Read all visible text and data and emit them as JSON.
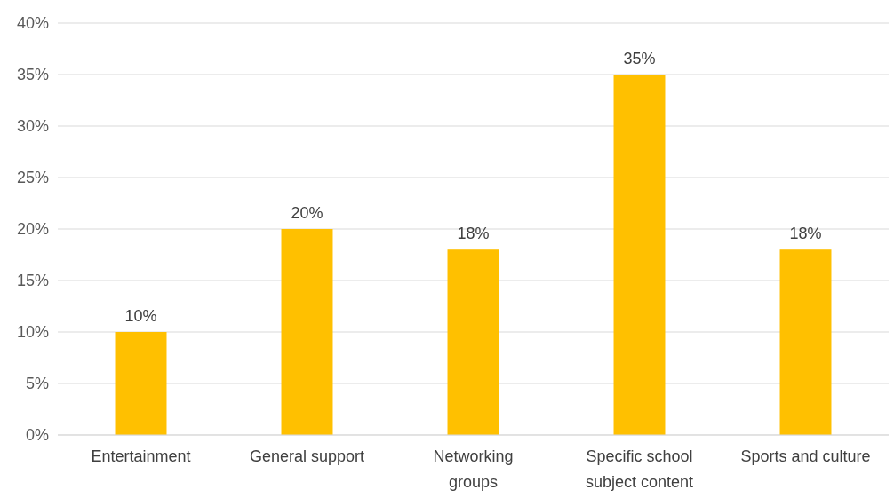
{
  "chart_data": {
    "type": "bar",
    "categories": [
      "Entertainment",
      "General support",
      "Networking groups",
      "Specific school subject content",
      "Sports and culture"
    ],
    "values": [
      10,
      20,
      18,
      35,
      18
    ],
    "value_labels": [
      "10%",
      "20%",
      "18%",
      "35%",
      "18%"
    ],
    "color": "#ffc000",
    "ylim": [
      0,
      40
    ],
    "yticks": [
      {
        "value": 0,
        "label": "0%"
      },
      {
        "value": 5,
        "label": "5%"
      },
      {
        "value": 10,
        "label": "10%"
      },
      {
        "value": 15,
        "label": "15%"
      },
      {
        "value": 20,
        "label": "20%"
      },
      {
        "value": 25,
        "label": "25%"
      },
      {
        "value": 30,
        "label": "30%"
      },
      {
        "value": 35,
        "label": "35%"
      },
      {
        "value": 40,
        "label": "40%"
      }
    ],
    "grid": "y"
  }
}
